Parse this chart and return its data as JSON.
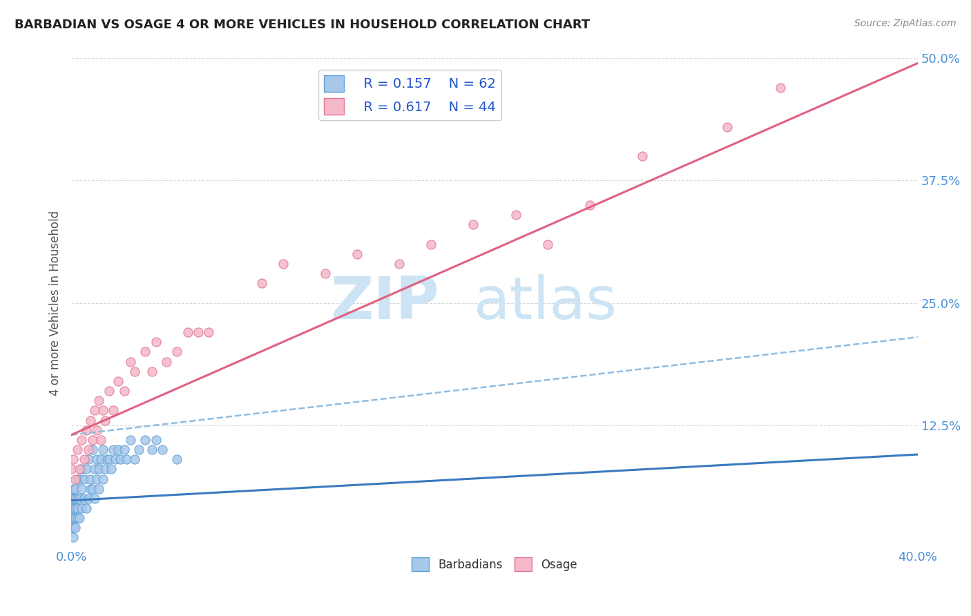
{
  "title": "BARBADIAN VS OSAGE 4 OR MORE VEHICLES IN HOUSEHOLD CORRELATION CHART",
  "source_text": "Source: ZipAtlas.com",
  "ylabel": "4 or more Vehicles in Household",
  "xlim": [
    0.0,
    0.4
  ],
  "ylim": [
    0.0,
    0.5
  ],
  "xticks": [
    0.0,
    0.05,
    0.1,
    0.15,
    0.2,
    0.25,
    0.3,
    0.35,
    0.4
  ],
  "xticklabels": [
    "0.0%",
    "",
    "",
    "",
    "",
    "",
    "",
    "",
    "40.0%"
  ],
  "yticks": [
    0.0,
    0.125,
    0.25,
    0.375,
    0.5
  ],
  "yticklabels": [
    "",
    "12.5%",
    "25.0%",
    "37.5%",
    "50.0%"
  ],
  "barbadian_fill": "#a8c8ea",
  "barbadian_edge": "#5a9fd4",
  "osage_fill": "#f5b8c8",
  "osage_edge": "#e07090",
  "barbadian_line_color": "#3a7abf",
  "osage_line_color": "#e06080",
  "dashed_line_color": "#90bce0",
  "legend_r_barbadian": "R = 0.157",
  "legend_n_barbadian": "N = 62",
  "legend_r_osage": "R = 0.617",
  "legend_n_osage": "N = 44",
  "watermark_zip": "ZIP",
  "watermark_atlas": "atlas",
  "watermark_color": "#cce4f4",
  "background_color": "#ffffff",
  "grid_color": "#d8d8d8",
  "title_color": "#222222",
  "axis_label_color": "#555555",
  "tick_color": "#4a90d9",
  "source_color": "#888888",
  "legend_text_color": "#2255cc",
  "barbadian_scatter_x": [
    0.0,
    0.0,
    0.0,
    0.0,
    0.001,
    0.001,
    0.001,
    0.001,
    0.001,
    0.001,
    0.002,
    0.002,
    0.002,
    0.002,
    0.002,
    0.003,
    0.003,
    0.003,
    0.003,
    0.004,
    0.004,
    0.004,
    0.005,
    0.005,
    0.005,
    0.006,
    0.006,
    0.007,
    0.007,
    0.008,
    0.008,
    0.009,
    0.009,
    0.01,
    0.01,
    0.011,
    0.011,
    0.012,
    0.012,
    0.013,
    0.013,
    0.014,
    0.015,
    0.015,
    0.016,
    0.017,
    0.018,
    0.019,
    0.02,
    0.021,
    0.022,
    0.023,
    0.025,
    0.026,
    0.028,
    0.03,
    0.032,
    0.035,
    0.038,
    0.04,
    0.043,
    0.05
  ],
  "barbadian_scatter_y": [
    0.02,
    0.03,
    0.04,
    0.05,
    0.01,
    0.02,
    0.03,
    0.04,
    0.05,
    0.06,
    0.02,
    0.03,
    0.04,
    0.05,
    0.06,
    0.03,
    0.04,
    0.05,
    0.07,
    0.03,
    0.05,
    0.07,
    0.04,
    0.06,
    0.08,
    0.05,
    0.07,
    0.04,
    0.08,
    0.05,
    0.09,
    0.06,
    0.07,
    0.06,
    0.1,
    0.05,
    0.08,
    0.07,
    0.09,
    0.06,
    0.08,
    0.09,
    0.07,
    0.1,
    0.08,
    0.09,
    0.09,
    0.08,
    0.1,
    0.09,
    0.1,
    0.09,
    0.1,
    0.09,
    0.11,
    0.09,
    0.1,
    0.11,
    0.1,
    0.11,
    0.1,
    0.09
  ],
  "osage_scatter_x": [
    0.0,
    0.001,
    0.002,
    0.003,
    0.004,
    0.005,
    0.006,
    0.007,
    0.008,
    0.009,
    0.01,
    0.011,
    0.012,
    0.013,
    0.014,
    0.015,
    0.016,
    0.018,
    0.02,
    0.022,
    0.025,
    0.028,
    0.03,
    0.035,
    0.038,
    0.04,
    0.045,
    0.05,
    0.055,
    0.06,
    0.065,
    0.09,
    0.1,
    0.12,
    0.135,
    0.155,
    0.17,
    0.19,
    0.21,
    0.225,
    0.245,
    0.27,
    0.31,
    0.335
  ],
  "osage_scatter_y": [
    0.08,
    0.09,
    0.07,
    0.1,
    0.08,
    0.11,
    0.09,
    0.12,
    0.1,
    0.13,
    0.11,
    0.14,
    0.12,
    0.15,
    0.11,
    0.14,
    0.13,
    0.16,
    0.14,
    0.17,
    0.16,
    0.19,
    0.18,
    0.2,
    0.18,
    0.21,
    0.19,
    0.2,
    0.22,
    0.22,
    0.22,
    0.27,
    0.29,
    0.28,
    0.3,
    0.29,
    0.31,
    0.33,
    0.34,
    0.31,
    0.35,
    0.4,
    0.43,
    0.47
  ],
  "barbadian_line_x0": 0.0,
  "barbadian_line_x1": 0.4,
  "barbadian_line_y0": 0.048,
  "barbadian_line_y1": 0.095,
  "dashed_line_x0": 0.0,
  "dashed_line_x1": 0.4,
  "dashed_line_y0": 0.115,
  "dashed_line_y1": 0.215,
  "osage_line_x0": 0.0,
  "osage_line_x1": 0.4,
  "osage_line_y0": 0.115,
  "osage_line_y1": 0.495
}
